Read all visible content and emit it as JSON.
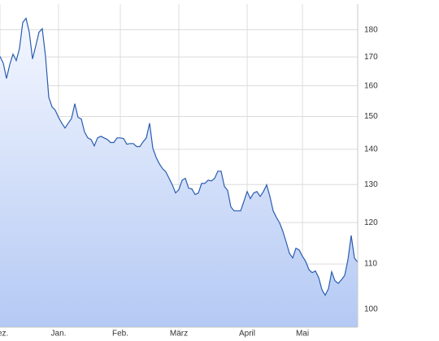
{
  "chart_data": {
    "type": "area",
    "categories": [
      "Dez.",
      null,
      null,
      null,
      null,
      null,
      null,
      null,
      null,
      null,
      null,
      null,
      null,
      null,
      null,
      null,
      null,
      null,
      "Jan.",
      null,
      null,
      null,
      null,
      null,
      null,
      null,
      null,
      null,
      null,
      null,
      null,
      null,
      null,
      null,
      null,
      null,
      null,
      "Feb.",
      null,
      null,
      null,
      null,
      null,
      null,
      null,
      null,
      null,
      null,
      null,
      null,
      null,
      null,
      null,
      null,
      null,
      "März",
      null,
      null,
      null,
      null,
      null,
      null,
      null,
      null,
      null,
      null,
      null,
      null,
      null,
      null,
      null,
      null,
      null,
      null,
      null,
      null,
      "April",
      null,
      null,
      null,
      null,
      null,
      null,
      null,
      null,
      null,
      null,
      null,
      null,
      null,
      null,
      null,
      null,
      "Mai",
      null,
      null,
      null,
      null,
      null,
      null,
      null,
      null,
      null,
      null,
      null,
      null,
      null,
      null,
      null,
      null,
      null
    ],
    "values": [
      170.2,
      167.8,
      162.5,
      167.3,
      171.0,
      168.7,
      173.1,
      182.8,
      184.4,
      179.1,
      169.3,
      174.0,
      179.1,
      180.4,
      170.2,
      156.2,
      153.1,
      152.0,
      149.7,
      147.9,
      146.4,
      147.9,
      149.4,
      154.1,
      149.7,
      149.2,
      145.2,
      143.4,
      142.9,
      141.0,
      143.4,
      143.9,
      143.4,
      142.9,
      142.0,
      142.0,
      143.4,
      143.4,
      143.2,
      141.5,
      141.7,
      141.7,
      140.8,
      140.8,
      142.2,
      143.4,
      147.9,
      140.3,
      137.7,
      135.8,
      134.4,
      133.5,
      131.7,
      129.9,
      127.7,
      128.6,
      131.2,
      131.7,
      129.0,
      128.8,
      127.3,
      127.7,
      130.3,
      130.3,
      131.2,
      131.0,
      131.7,
      133.7,
      133.7,
      129.5,
      128.4,
      124.0,
      123.0,
      123.0,
      123.0,
      125.5,
      128.1,
      126.2,
      127.7,
      128.1,
      126.8,
      128.1,
      129.9,
      126.8,
      123.0,
      121.3,
      119.9,
      117.8,
      115.2,
      112.5,
      111.4,
      113.7,
      113.3,
      111.8,
      110.6,
      108.7,
      108.0,
      108.4,
      106.9,
      104.2,
      103.0,
      104.4,
      108.2,
      106.2,
      105.6,
      106.4,
      107.4,
      111.0,
      116.8,
      111.4,
      110.4
    ],
    "color": "#2a5db0",
    "ylim": [
      96.3,
      190
    ],
    "yticks": [
      100,
      110,
      120,
      130,
      140,
      150,
      160,
      170,
      180
    ],
    "log_scale": true,
    "grid": true
  }
}
